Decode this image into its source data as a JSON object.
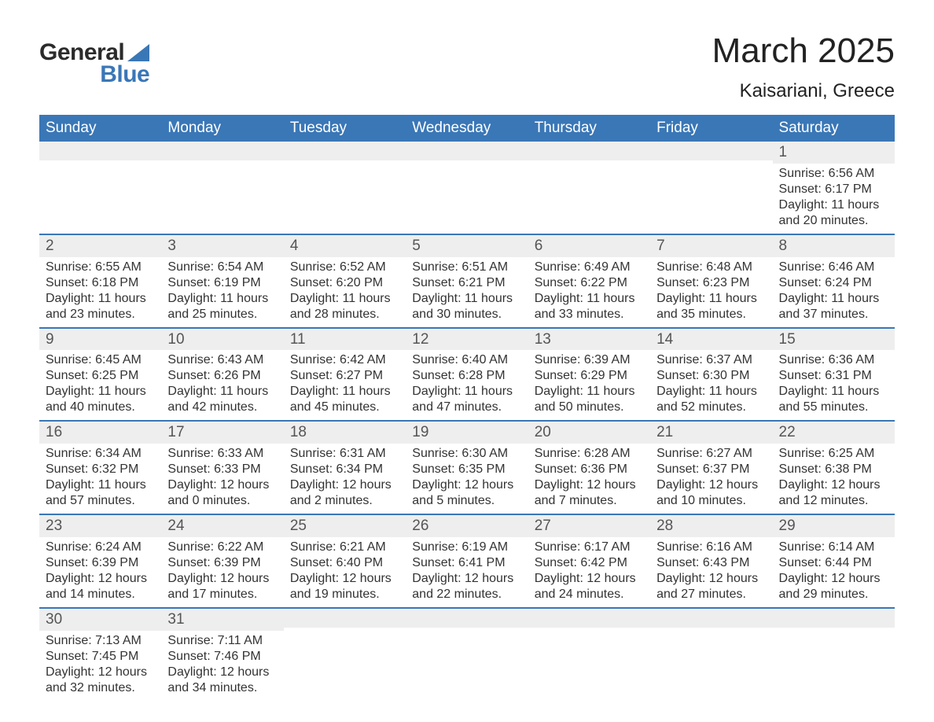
{
  "logo": {
    "general": "General",
    "blue": "Blue"
  },
  "title": "March 2025",
  "location": "Kaisariani, Greece",
  "colors": {
    "header_bg": "#3a77b7",
    "daynum_bg": "#eeeeee",
    "week_divider": "#3a77b7",
    "text": "#333333",
    "title_text": "#222222",
    "logo_dark": "#2b2b2b",
    "logo_blue": "#3a77b7",
    "page_bg": "#ffffff"
  },
  "typography": {
    "title_fontsize": 44,
    "subtitle_fontsize": 24,
    "dayhead_fontsize": 19,
    "cell_fontsize": 16,
    "daynum_fontsize": 19,
    "logo_fontsize": 30
  },
  "day_headers": [
    "Sunday",
    "Monday",
    "Tuesday",
    "Wednesday",
    "Thursday",
    "Friday",
    "Saturday"
  ],
  "weeks": [
    [
      {
        "n": "",
        "sunrise": "",
        "sunset": "",
        "daylight1": "",
        "daylight2": ""
      },
      {
        "n": "",
        "sunrise": "",
        "sunset": "",
        "daylight1": "",
        "daylight2": ""
      },
      {
        "n": "",
        "sunrise": "",
        "sunset": "",
        "daylight1": "",
        "daylight2": ""
      },
      {
        "n": "",
        "sunrise": "",
        "sunset": "",
        "daylight1": "",
        "daylight2": ""
      },
      {
        "n": "",
        "sunrise": "",
        "sunset": "",
        "daylight1": "",
        "daylight2": ""
      },
      {
        "n": "",
        "sunrise": "",
        "sunset": "",
        "daylight1": "",
        "daylight2": ""
      },
      {
        "n": "1",
        "sunrise": "Sunrise: 6:56 AM",
        "sunset": "Sunset: 6:17 PM",
        "daylight1": "Daylight: 11 hours",
        "daylight2": "and 20 minutes."
      }
    ],
    [
      {
        "n": "2",
        "sunrise": "Sunrise: 6:55 AM",
        "sunset": "Sunset: 6:18 PM",
        "daylight1": "Daylight: 11 hours",
        "daylight2": "and 23 minutes."
      },
      {
        "n": "3",
        "sunrise": "Sunrise: 6:54 AM",
        "sunset": "Sunset: 6:19 PM",
        "daylight1": "Daylight: 11 hours",
        "daylight2": "and 25 minutes."
      },
      {
        "n": "4",
        "sunrise": "Sunrise: 6:52 AM",
        "sunset": "Sunset: 6:20 PM",
        "daylight1": "Daylight: 11 hours",
        "daylight2": "and 28 minutes."
      },
      {
        "n": "5",
        "sunrise": "Sunrise: 6:51 AM",
        "sunset": "Sunset: 6:21 PM",
        "daylight1": "Daylight: 11 hours",
        "daylight2": "and 30 minutes."
      },
      {
        "n": "6",
        "sunrise": "Sunrise: 6:49 AM",
        "sunset": "Sunset: 6:22 PM",
        "daylight1": "Daylight: 11 hours",
        "daylight2": "and 33 minutes."
      },
      {
        "n": "7",
        "sunrise": "Sunrise: 6:48 AM",
        "sunset": "Sunset: 6:23 PM",
        "daylight1": "Daylight: 11 hours",
        "daylight2": "and 35 minutes."
      },
      {
        "n": "8",
        "sunrise": "Sunrise: 6:46 AM",
        "sunset": "Sunset: 6:24 PM",
        "daylight1": "Daylight: 11 hours",
        "daylight2": "and 37 minutes."
      }
    ],
    [
      {
        "n": "9",
        "sunrise": "Sunrise: 6:45 AM",
        "sunset": "Sunset: 6:25 PM",
        "daylight1": "Daylight: 11 hours",
        "daylight2": "and 40 minutes."
      },
      {
        "n": "10",
        "sunrise": "Sunrise: 6:43 AM",
        "sunset": "Sunset: 6:26 PM",
        "daylight1": "Daylight: 11 hours",
        "daylight2": "and 42 minutes."
      },
      {
        "n": "11",
        "sunrise": "Sunrise: 6:42 AM",
        "sunset": "Sunset: 6:27 PM",
        "daylight1": "Daylight: 11 hours",
        "daylight2": "and 45 minutes."
      },
      {
        "n": "12",
        "sunrise": "Sunrise: 6:40 AM",
        "sunset": "Sunset: 6:28 PM",
        "daylight1": "Daylight: 11 hours",
        "daylight2": "and 47 minutes."
      },
      {
        "n": "13",
        "sunrise": "Sunrise: 6:39 AM",
        "sunset": "Sunset: 6:29 PM",
        "daylight1": "Daylight: 11 hours",
        "daylight2": "and 50 minutes."
      },
      {
        "n": "14",
        "sunrise": "Sunrise: 6:37 AM",
        "sunset": "Sunset: 6:30 PM",
        "daylight1": "Daylight: 11 hours",
        "daylight2": "and 52 minutes."
      },
      {
        "n": "15",
        "sunrise": "Sunrise: 6:36 AM",
        "sunset": "Sunset: 6:31 PM",
        "daylight1": "Daylight: 11 hours",
        "daylight2": "and 55 minutes."
      }
    ],
    [
      {
        "n": "16",
        "sunrise": "Sunrise: 6:34 AM",
        "sunset": "Sunset: 6:32 PM",
        "daylight1": "Daylight: 11 hours",
        "daylight2": "and 57 minutes."
      },
      {
        "n": "17",
        "sunrise": "Sunrise: 6:33 AM",
        "sunset": "Sunset: 6:33 PM",
        "daylight1": "Daylight: 12 hours",
        "daylight2": "and 0 minutes."
      },
      {
        "n": "18",
        "sunrise": "Sunrise: 6:31 AM",
        "sunset": "Sunset: 6:34 PM",
        "daylight1": "Daylight: 12 hours",
        "daylight2": "and 2 minutes."
      },
      {
        "n": "19",
        "sunrise": "Sunrise: 6:30 AM",
        "sunset": "Sunset: 6:35 PM",
        "daylight1": "Daylight: 12 hours",
        "daylight2": "and 5 minutes."
      },
      {
        "n": "20",
        "sunrise": "Sunrise: 6:28 AM",
        "sunset": "Sunset: 6:36 PM",
        "daylight1": "Daylight: 12 hours",
        "daylight2": "and 7 minutes."
      },
      {
        "n": "21",
        "sunrise": "Sunrise: 6:27 AM",
        "sunset": "Sunset: 6:37 PM",
        "daylight1": "Daylight: 12 hours",
        "daylight2": "and 10 minutes."
      },
      {
        "n": "22",
        "sunrise": "Sunrise: 6:25 AM",
        "sunset": "Sunset: 6:38 PM",
        "daylight1": "Daylight: 12 hours",
        "daylight2": "and 12 minutes."
      }
    ],
    [
      {
        "n": "23",
        "sunrise": "Sunrise: 6:24 AM",
        "sunset": "Sunset: 6:39 PM",
        "daylight1": "Daylight: 12 hours",
        "daylight2": "and 14 minutes."
      },
      {
        "n": "24",
        "sunrise": "Sunrise: 6:22 AM",
        "sunset": "Sunset: 6:39 PM",
        "daylight1": "Daylight: 12 hours",
        "daylight2": "and 17 minutes."
      },
      {
        "n": "25",
        "sunrise": "Sunrise: 6:21 AM",
        "sunset": "Sunset: 6:40 PM",
        "daylight1": "Daylight: 12 hours",
        "daylight2": "and 19 minutes."
      },
      {
        "n": "26",
        "sunrise": "Sunrise: 6:19 AM",
        "sunset": "Sunset: 6:41 PM",
        "daylight1": "Daylight: 12 hours",
        "daylight2": "and 22 minutes."
      },
      {
        "n": "27",
        "sunrise": "Sunrise: 6:17 AM",
        "sunset": "Sunset: 6:42 PM",
        "daylight1": "Daylight: 12 hours",
        "daylight2": "and 24 minutes."
      },
      {
        "n": "28",
        "sunrise": "Sunrise: 6:16 AM",
        "sunset": "Sunset: 6:43 PM",
        "daylight1": "Daylight: 12 hours",
        "daylight2": "and 27 minutes."
      },
      {
        "n": "29",
        "sunrise": "Sunrise: 6:14 AM",
        "sunset": "Sunset: 6:44 PM",
        "daylight1": "Daylight: 12 hours",
        "daylight2": "and 29 minutes."
      }
    ],
    [
      {
        "n": "30",
        "sunrise": "Sunrise: 7:13 AM",
        "sunset": "Sunset: 7:45 PM",
        "daylight1": "Daylight: 12 hours",
        "daylight2": "and 32 minutes."
      },
      {
        "n": "31",
        "sunrise": "Sunrise: 7:11 AM",
        "sunset": "Sunset: 7:46 PM",
        "daylight1": "Daylight: 12 hours",
        "daylight2": "and 34 minutes."
      },
      {
        "n": "",
        "sunrise": "",
        "sunset": "",
        "daylight1": "",
        "daylight2": ""
      },
      {
        "n": "",
        "sunrise": "",
        "sunset": "",
        "daylight1": "",
        "daylight2": ""
      },
      {
        "n": "",
        "sunrise": "",
        "sunset": "",
        "daylight1": "",
        "daylight2": ""
      },
      {
        "n": "",
        "sunrise": "",
        "sunset": "",
        "daylight1": "",
        "daylight2": ""
      },
      {
        "n": "",
        "sunrise": "",
        "sunset": "",
        "daylight1": "",
        "daylight2": ""
      }
    ]
  ]
}
